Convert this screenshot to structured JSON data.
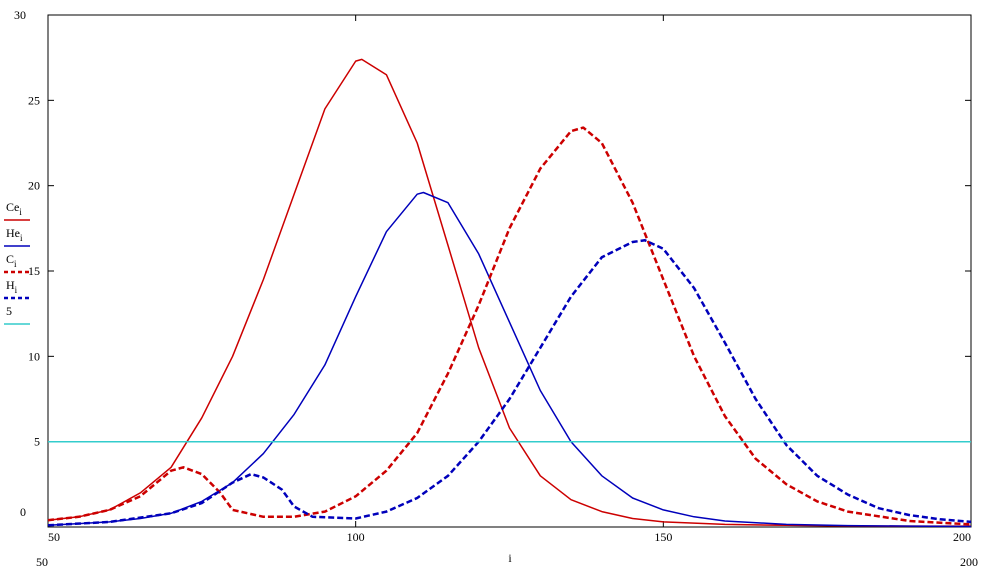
{
  "chart_data": {
    "type": "line",
    "x_label": "i",
    "xlim": [
      50,
      200
    ],
    "ylim": [
      0,
      30
    ],
    "xticks": [
      50,
      100,
      150,
      200
    ],
    "yticks": [
      5,
      10,
      15,
      20,
      25
    ],
    "series": [
      {
        "name": "Ce",
        "subscript": "i",
        "color": "#cc0000",
        "dashed": false,
        "x": [
          50,
          55,
          60,
          65,
          70,
          75,
          80,
          85,
          90,
          95,
          100,
          101,
          105,
          110,
          115,
          120,
          125,
          130,
          135,
          140,
          145,
          150,
          160,
          170,
          180,
          190,
          200
        ],
        "values": [
          0.4,
          0.6,
          1.0,
          2.0,
          3.5,
          6.4,
          10.0,
          14.5,
          19.5,
          24.5,
          27.3,
          27.4,
          26.5,
          22.5,
          16.5,
          10.5,
          5.8,
          3.0,
          1.6,
          0.9,
          0.5,
          0.3,
          0.15,
          0.1,
          0.06,
          0.05,
          0.05
        ]
      },
      {
        "name": "He",
        "subscript": "i",
        "color": "#0000bb",
        "dashed": false,
        "x": [
          50,
          55,
          60,
          65,
          70,
          75,
          80,
          85,
          90,
          95,
          100,
          105,
          110,
          111,
          115,
          120,
          125,
          130,
          135,
          140,
          145,
          150,
          155,
          160,
          170,
          180,
          190,
          200
        ],
        "values": [
          0.1,
          0.2,
          0.3,
          0.5,
          0.8,
          1.5,
          2.6,
          4.3,
          6.6,
          9.5,
          13.5,
          17.3,
          19.5,
          19.6,
          19.0,
          16.0,
          12.0,
          8.0,
          5.0,
          3.0,
          1.7,
          1.0,
          0.6,
          0.35,
          0.15,
          0.08,
          0.05,
          0.03
        ]
      },
      {
        "name": "C",
        "subscript": "i",
        "color": "#cc0000",
        "dashed": true,
        "x": [
          50,
          55,
          60,
          65,
          70,
          72,
          75,
          78,
          80,
          85,
          90,
          95,
          100,
          105,
          110,
          115,
          120,
          125,
          130,
          135,
          137,
          140,
          145,
          150,
          155,
          160,
          165,
          170,
          175,
          180,
          190,
          200
        ],
        "values": [
          0.4,
          0.6,
          1.0,
          1.8,
          3.3,
          3.5,
          3.1,
          2.0,
          1.0,
          0.6,
          0.6,
          0.9,
          1.8,
          3.3,
          5.5,
          9.0,
          13.0,
          17.5,
          21.0,
          23.2,
          23.4,
          22.5,
          19.0,
          14.5,
          10.0,
          6.5,
          4.0,
          2.5,
          1.5,
          0.9,
          0.35,
          0.15
        ]
      },
      {
        "name": "H",
        "subscript": "i",
        "color": "#0000bb",
        "dashed": true,
        "x": [
          50,
          60,
          70,
          75,
          80,
          83,
          85,
          88,
          90,
          93,
          100,
          105,
          110,
          115,
          120,
          125,
          130,
          135,
          140,
          145,
          147,
          150,
          155,
          160,
          165,
          170,
          175,
          180,
          185,
          190,
          195,
          200
        ],
        "values": [
          0.1,
          0.3,
          0.8,
          1.4,
          2.6,
          3.1,
          2.9,
          2.2,
          1.2,
          0.6,
          0.5,
          0.9,
          1.7,
          3.0,
          5.0,
          7.5,
          10.5,
          13.5,
          15.8,
          16.7,
          16.8,
          16.3,
          14.0,
          10.8,
          7.5,
          4.8,
          3.0,
          1.9,
          1.1,
          0.7,
          0.45,
          0.3
        ]
      },
      {
        "name": "5",
        "color": "#33cccc",
        "dashed": false,
        "x": [
          50,
          200
        ],
        "values": [
          5,
          5
        ]
      }
    ]
  }
}
